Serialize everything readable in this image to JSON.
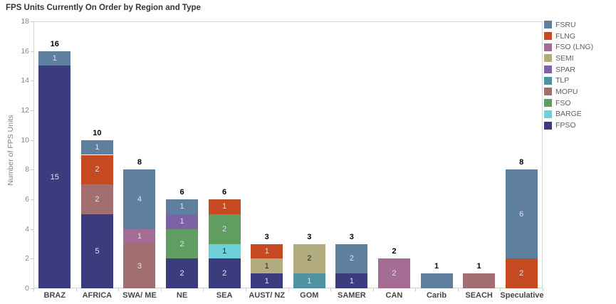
{
  "chart_data": {
    "type": "bar",
    "stacked": true,
    "title": "FPS Units Currently On Order by Region and Type",
    "xlabel": "",
    "ylabel": "Number of FPS Units",
    "ylim": [
      0,
      18
    ],
    "yticks": [
      0,
      2,
      4,
      6,
      8,
      10,
      12,
      14,
      16,
      18
    ],
    "grid": false,
    "legend_position": "right",
    "legend": [
      {
        "label": "FSRU",
        "color": "#5f7f9e"
      },
      {
        "label": "FLNG",
        "color": "#c64a21"
      },
      {
        "label": "FSO (LNG)",
        "color": "#a56d94"
      },
      {
        "label": "SEMI",
        "color": "#b3ab80"
      },
      {
        "label": "SPAR",
        "color": "#7e61a6"
      },
      {
        "label": "TLP",
        "color": "#4f93a0"
      },
      {
        "label": "MOPU",
        "color": "#a36e70"
      },
      {
        "label": "FSO",
        "color": "#5f9e60"
      },
      {
        "label": "BARGE",
        "color": "#6ed0d8"
      },
      {
        "label": "FPSO",
        "color": "#3b3c7e"
      }
    ],
    "label_colors": {
      "light": "#dfe1ee",
      "dark": "#262626"
    },
    "categories": [
      "BRAZ",
      "AFRICA",
      "SWA/ ME",
      "NE",
      "SEA",
      "AUST/ NZ",
      "GOM",
      "SAMER",
      "CAN",
      "Carib",
      "SEACH",
      "Speculative"
    ],
    "totals": [
      16,
      10,
      8,
      6,
      6,
      3,
      3,
      3,
      2,
      1,
      1,
      8
    ],
    "bars": [
      {
        "category": "BRAZ",
        "segments": [
          {
            "type": "FPSO",
            "value": 15,
            "label": "15",
            "label_tone": "light"
          },
          {
            "type": "FSRU",
            "value": 1,
            "label": "1",
            "label_tone": "light"
          }
        ]
      },
      {
        "category": "AFRICA",
        "segments": [
          {
            "type": "FPSO",
            "value": 5,
            "label": "5",
            "label_tone": "light"
          },
          {
            "type": "MOPU",
            "value": 2,
            "label": "2",
            "label_tone": "light"
          },
          {
            "type": "FLNG",
            "value": 2,
            "label": "2",
            "label_tone": "light"
          },
          {
            "type": "FSRU",
            "value": 1,
            "label": "1",
            "label_tone": "light"
          }
        ]
      },
      {
        "category": "SWA/ ME",
        "segments": [
          {
            "type": "MOPU",
            "value": 3,
            "label": "3",
            "label_tone": "light"
          },
          {
            "type": "FSO (LNG)",
            "value": 1,
            "label": "1",
            "label_tone": "light"
          },
          {
            "type": "FSRU",
            "value": 4,
            "label": "4",
            "label_tone": "light"
          }
        ]
      },
      {
        "category": "NE",
        "segments": [
          {
            "type": "FPSO",
            "value": 2,
            "label": "2",
            "label_tone": "light"
          },
          {
            "type": "FSO",
            "value": 2,
            "label": "2",
            "label_tone": "light"
          },
          {
            "type": "SPAR",
            "value": 1,
            "label": "1",
            "label_tone": "light"
          },
          {
            "type": "FSRU",
            "value": 1,
            "label": "1",
            "label_tone": "light"
          }
        ]
      },
      {
        "category": "SEA",
        "segments": [
          {
            "type": "FPSO",
            "value": 2,
            "label": "2",
            "label_tone": "light"
          },
          {
            "type": "BARGE",
            "value": 1,
            "label": "1",
            "label_tone": "dark"
          },
          {
            "type": "FSO",
            "value": 2,
            "label": "2",
            "label_tone": "light"
          },
          {
            "type": "FLNG",
            "value": 1,
            "label": "1",
            "label_tone": "light"
          }
        ]
      },
      {
        "category": "AUST/ NZ",
        "segments": [
          {
            "type": "FPSO",
            "value": 1,
            "label": "1",
            "label_tone": "light"
          },
          {
            "type": "SEMI",
            "value": 1,
            "label": "1",
            "label_tone": "dark"
          },
          {
            "type": "FLNG",
            "value": 1,
            "label": "1",
            "label_tone": "light"
          }
        ]
      },
      {
        "category": "GOM",
        "segments": [
          {
            "type": "TLP",
            "value": 1,
            "label": "1",
            "label_tone": "light"
          },
          {
            "type": "SEMI",
            "value": 2,
            "label": "2",
            "label_tone": "dark"
          }
        ]
      },
      {
        "category": "SAMER",
        "segments": [
          {
            "type": "FPSO",
            "value": 1,
            "label": "1",
            "label_tone": "light"
          },
          {
            "type": "FSRU",
            "value": 2,
            "label": "2",
            "label_tone": "light"
          }
        ]
      },
      {
        "category": "CAN",
        "segments": [
          {
            "type": "FSO (LNG)",
            "value": 2,
            "label": "2",
            "label_tone": "light"
          }
        ]
      },
      {
        "category": "Carib",
        "segments": [
          {
            "type": "FSRU",
            "value": 1,
            "label": "",
            "label_tone": "light"
          }
        ]
      },
      {
        "category": "SEACH",
        "segments": [
          {
            "type": "MOPU",
            "value": 1,
            "label": "",
            "label_tone": "light"
          }
        ]
      },
      {
        "category": "Speculative",
        "segments": [
          {
            "type": "FLNG",
            "value": 2,
            "label": "2",
            "label_tone": "light"
          },
          {
            "type": "FSRU",
            "value": 6,
            "label": "6",
            "label_tone": "light"
          }
        ]
      }
    ]
  }
}
